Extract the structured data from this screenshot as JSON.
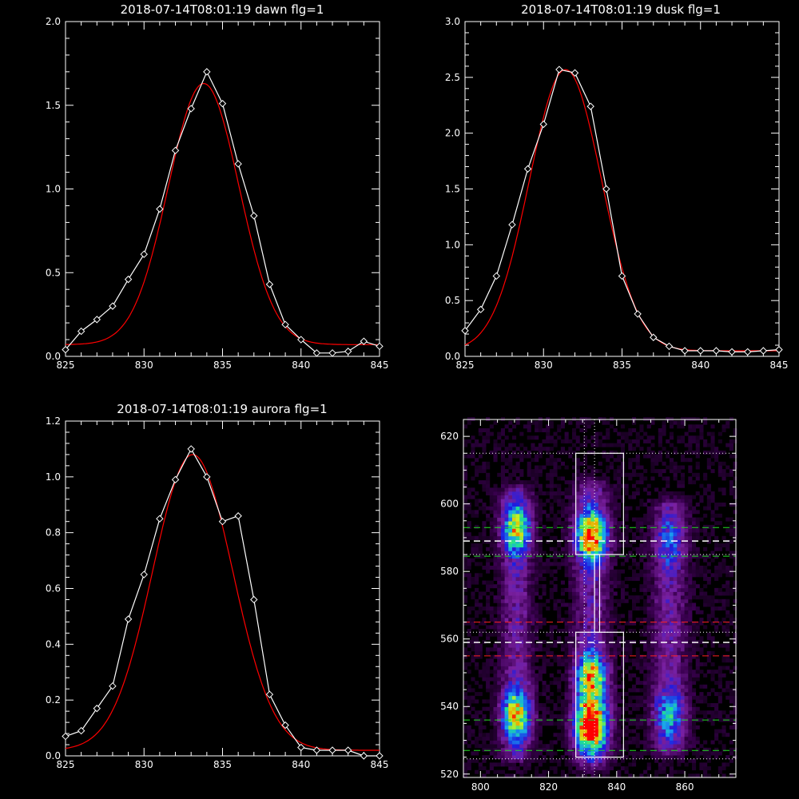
{
  "chart_data": [
    {
      "type": "line",
      "title": "2018-07-14T08:01:19 dawn flg=1",
      "xlim": [
        825,
        845
      ],
      "ylim": [
        0,
        2.0
      ],
      "x_ticks": [
        "825",
        "830",
        "835",
        "840",
        "845"
      ],
      "y_ticks": [
        "0.0",
        "0.5",
        "1.0",
        "1.5",
        "2.0"
      ],
      "x_tick_values": [
        825,
        830,
        835,
        840,
        845
      ],
      "y_tick_values": [
        0,
        0.5,
        1.0,
        1.5,
        2.0
      ],
      "series": [
        {
          "color": "#ffffff",
          "marker": "diamond",
          "x": [
            825,
            826,
            827,
            828,
            829,
            830,
            831,
            832,
            833,
            834,
            835,
            836,
            837,
            838,
            839,
            840,
            841,
            842,
            843,
            844,
            845
          ],
          "y": [
            0.04,
            0.15,
            0.22,
            0.3,
            0.46,
            0.61,
            0.88,
            1.23,
            1.48,
            1.7,
            1.51,
            1.15,
            0.84,
            0.43,
            0.19,
            0.1,
            0.02,
            0.02,
            0.03,
            0.09,
            0.06
          ]
        },
        {
          "color": "#ff0000",
          "marker": "none",
          "gaussian": {
            "amp": 1.56,
            "center": 833.8,
            "sigma": 2.25,
            "offset": 0.07
          }
        }
      ]
    },
    {
      "type": "line",
      "title": "2018-07-14T08:01:19 dusk flg=1",
      "xlim": [
        825,
        845
      ],
      "ylim": [
        0,
        3.0
      ],
      "x_ticks": [
        "825",
        "830",
        "835",
        "840",
        "845"
      ],
      "y_ticks": [
        "0.0",
        "0.5",
        "1.0",
        "1.5",
        "2.0",
        "2.5",
        "3.0"
      ],
      "x_tick_values": [
        825,
        830,
        835,
        840,
        845
      ],
      "y_tick_values": [
        0,
        0.5,
        1.0,
        1.5,
        2.0,
        2.5,
        3.0
      ],
      "series": [
        {
          "color": "#ffffff",
          "marker": "diamond",
          "x": [
            825,
            826,
            827,
            828,
            829,
            830,
            831,
            832,
            833,
            834,
            835,
            836,
            837,
            838,
            839,
            840,
            841,
            842,
            843,
            844,
            845
          ],
          "y": [
            0.23,
            0.42,
            0.72,
            1.18,
            1.68,
            2.08,
            2.57,
            2.54,
            2.24,
            1.5,
            0.72,
            0.38,
            0.17,
            0.09,
            0.05,
            0.05,
            0.05,
            0.04,
            0.04,
            0.05,
            0.06
          ]
        },
        {
          "color": "#ff0000",
          "marker": "none",
          "gaussian": {
            "amp": 2.52,
            "center": 831.4,
            "sigma": 2.3,
            "offset": 0.05
          }
        }
      ]
    },
    {
      "type": "line",
      "title": "2018-07-14T08:01:19 aurora flg=1",
      "xlim": [
        825,
        845
      ],
      "ylim": [
        0,
        1.2
      ],
      "x_ticks": [
        "825",
        "830",
        "835",
        "840",
        "845"
      ],
      "y_ticks": [
        "0.0",
        "0.2",
        "0.4",
        "0.6",
        "0.8",
        "1.0",
        "1.2"
      ],
      "x_tick_values": [
        825,
        830,
        835,
        840,
        845
      ],
      "y_tick_values": [
        0,
        0.2,
        0.4,
        0.6,
        0.8,
        1.0,
        1.2
      ],
      "series": [
        {
          "color": "#ffffff",
          "marker": "diamond",
          "x": [
            825,
            826,
            827,
            828,
            829,
            830,
            831,
            832,
            833,
            834,
            835,
            836,
            837,
            838,
            839,
            840,
            841,
            842,
            843,
            844,
            845
          ],
          "y": [
            0.07,
            0.09,
            0.17,
            0.25,
            0.49,
            0.65,
            0.85,
            0.99,
            1.1,
            1.0,
            0.84,
            0.86,
            0.56,
            0.22,
            0.11,
            0.03,
            0.02,
            0.02,
            0.02,
            0.0,
            0.0
          ]
        },
        {
          "color": "#ff0000",
          "marker": "none",
          "gaussian": {
            "amp": 1.06,
            "center": 833.1,
            "sigma": 2.55,
            "offset": 0.02
          }
        }
      ]
    },
    {
      "type": "heatmap",
      "xlim": [
        795,
        875
      ],
      "ylim": [
        519,
        625
      ],
      "x_ticks": [
        "800",
        "820",
        "840",
        "860"
      ],
      "y_ticks": [
        "520",
        "540",
        "560",
        "580",
        "600",
        "620"
      ],
      "x_tick_values": [
        800,
        820,
        840,
        860
      ],
      "y_tick_values": [
        520,
        540,
        560,
        580,
        600,
        620
      ],
      "color_scale": [
        "#000000",
        "#3a0050",
        "#7a20a0",
        "#1d1de0",
        "#1aa0f0",
        "#20e090",
        "#c8f020",
        "#f0a000",
        "#ff0000"
      ],
      "columns": [
        {
          "x": 810,
          "width": 4.5,
          "y_from": 526,
          "y_to": 602,
          "peaks": [
            [
              592,
              0.55
            ],
            [
              537,
              0.62
            ]
          ]
        },
        {
          "x": 832,
          "width": 5.0,
          "y_from": 524,
          "y_to": 604,
          "peaks": [
            [
              590,
              0.75
            ],
            [
              548,
              0.62
            ],
            [
              534,
              1.0
            ]
          ]
        },
        {
          "x": 855,
          "width": 5.0,
          "y_from": 528,
          "y_to": 598,
          "peaks": [
            [
              588,
              0.2
            ],
            [
              537,
              0.3
            ]
          ]
        }
      ],
      "overlays": {
        "white_dotted_h": [
          615,
          585,
          562,
          524.5
        ],
        "white_dotted_v": [
          830.5,
          833.5
        ],
        "white_dashed_h": [
          589,
          559
        ],
        "green_dashed_h": [
          593,
          584.5,
          536,
          527
        ],
        "red_dashed_h": [
          565,
          555
        ],
        "white_boxes": [
          {
            "x": [
              828,
              842
            ],
            "y": [
              585,
              615
            ]
          },
          {
            "x": [
              833.5,
              835
            ],
            "y": [
              562,
              585
            ]
          },
          {
            "x": [
              828,
              842
            ],
            "y": [
              525,
              562
            ]
          }
        ]
      }
    }
  ]
}
